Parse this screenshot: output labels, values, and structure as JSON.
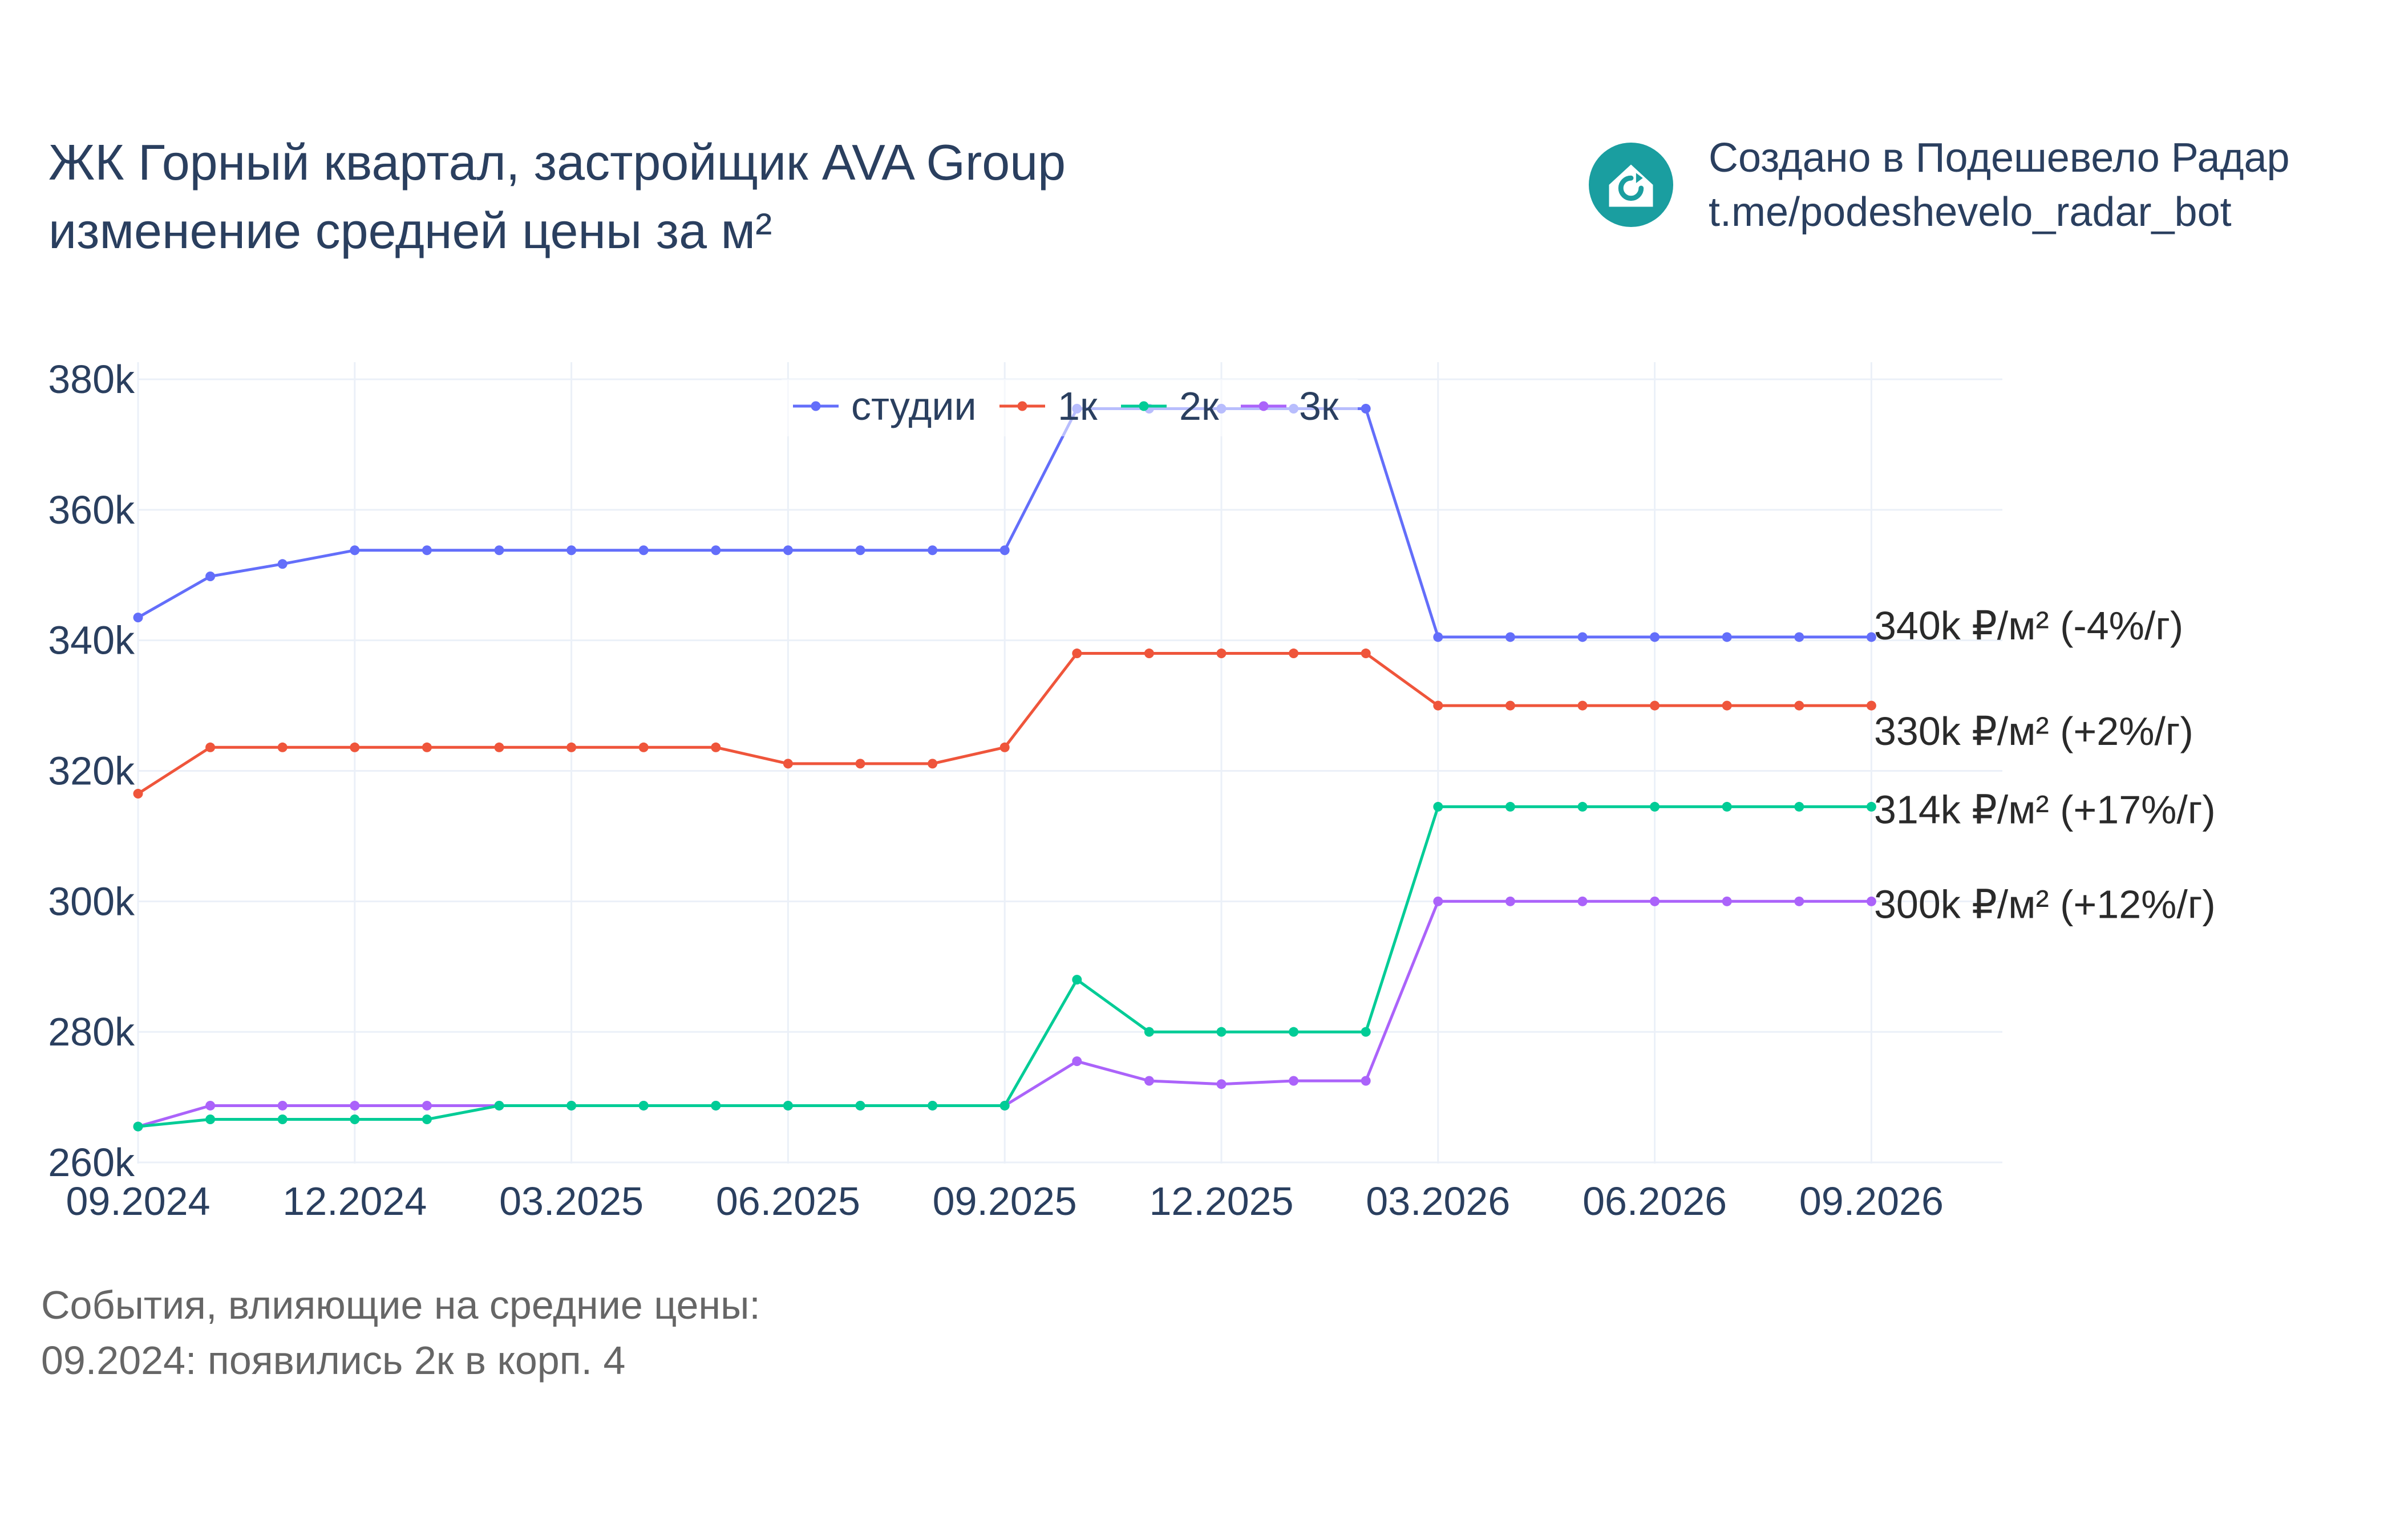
{
  "title": {
    "line1": "ЖК Горный квартал, застройщик AVA Group",
    "line2": "изменение средней цены за м²"
  },
  "credit": {
    "icon": "house-refresh-icon",
    "line1": "Создано в Подешевело Радар",
    "line2": "t.me/podeshevelo_radar_bot",
    "icon_color": "#1a9ea0"
  },
  "events": {
    "heading": "События, влияющие на средние цены:",
    "items": [
      "09.2024: появились 2к в корп. 4"
    ]
  },
  "chart_data": {
    "type": "line",
    "title": "",
    "xlabel": "",
    "ylabel": "",
    "x_ticks": [
      "09.2024",
      "12.2024",
      "03.2025",
      "06.2025",
      "09.2025",
      "12.2025",
      "03.2026",
      "06.2026",
      "09.2026"
    ],
    "y_ticks": [
      "260k",
      "280k",
      "300k",
      "320k",
      "340k",
      "360k",
      "380k"
    ],
    "ylim": [
      260000,
      380000
    ],
    "grid": true,
    "legend_placement": "top-center",
    "x": [
      "2024-09",
      "2024-10",
      "2024-11",
      "2024-12",
      "2025-01",
      "2025-02",
      "2025-03",
      "2025-04",
      "2025-05",
      "2025-06",
      "2025-07",
      "2025-08",
      "2025-09",
      "2025-10",
      "2025-11",
      "2025-12",
      "2026-01",
      "2026-02",
      "2026-03",
      "2026-04",
      "2026-05",
      "2026-06",
      "2026-07",
      "2026-08",
      "2026-09"
    ],
    "series": [
      {
        "name": "студии",
        "color": "#636efa",
        "values": [
          343500,
          349800,
          351700,
          353800,
          353800,
          353800,
          353800,
          353800,
          353800,
          353800,
          353800,
          353800,
          353800,
          375500,
          375500,
          375500,
          375500,
          375500,
          340500,
          340500,
          340500,
          340500,
          340500,
          340500,
          340500
        ],
        "end_label": "340k ₽/м² (-4%/г)"
      },
      {
        "name": "1к",
        "color": "#ef553b",
        "values": [
          316500,
          323600,
          323600,
          323600,
          323600,
          323600,
          323600,
          323600,
          323600,
          321100,
          321100,
          321100,
          323600,
          338000,
          338000,
          338000,
          338000,
          338000,
          330000,
          330000,
          330000,
          330000,
          330000,
          330000,
          330000
        ],
        "end_label": "330k ₽/м² (+2%/г)"
      },
      {
        "name": "2к",
        "color": "#00cc96",
        "values": [
          265500,
          266600,
          266600,
          266600,
          266600,
          268700,
          268700,
          268700,
          268700,
          268700,
          268700,
          268700,
          268700,
          288000,
          280000,
          280000,
          280000,
          280000,
          314500,
          314500,
          314500,
          314500,
          314500,
          314500,
          314500
        ],
        "end_label": "314k ₽/м² (+17%/г)"
      },
      {
        "name": "3к",
        "color": "#ab63fa",
        "values": [
          265500,
          268700,
          268700,
          268700,
          268700,
          268700,
          268700,
          268700,
          268700,
          268700,
          268700,
          268700,
          268700,
          275500,
          272500,
          272000,
          272500,
          272500,
          300000,
          300000,
          300000,
          300000,
          300000,
          300000,
          300000
        ],
        "end_label": "300k ₽/м² (+12%/г)"
      }
    ]
  }
}
